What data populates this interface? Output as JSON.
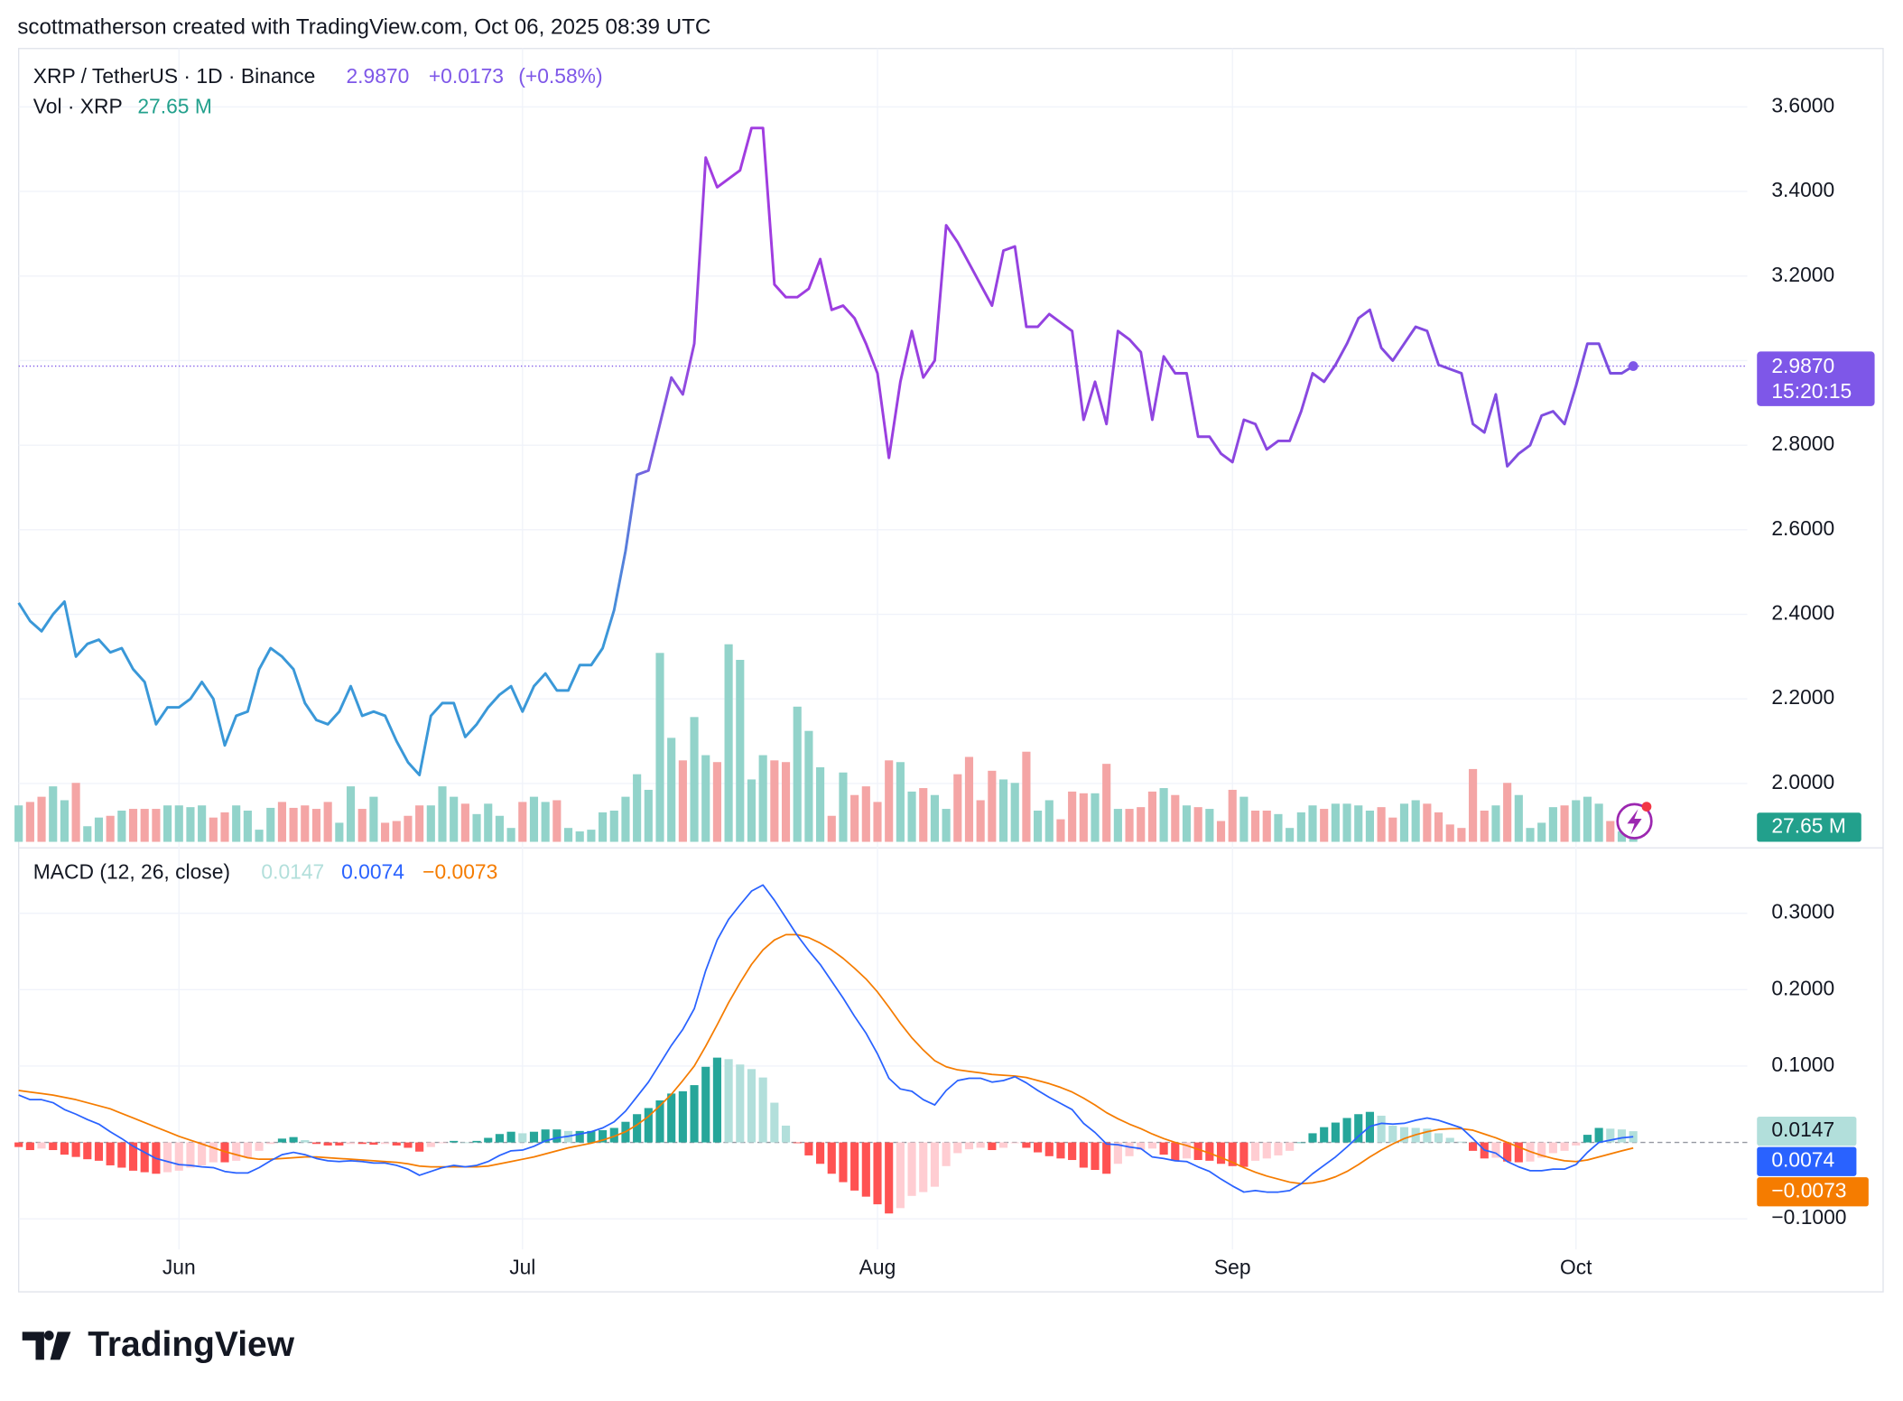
{
  "chart_data": {
    "type": "line",
    "header": "scottmatherson created with TradingView.com, Oct 06, 2025 08:39 UTC",
    "logo": "TradingView",
    "categories": [
      null,
      null,
      null,
      null,
      null,
      null,
      null,
      null,
      null,
      null,
      null,
      null,
      null,
      null,
      "Jun",
      null,
      null,
      null,
      null,
      null,
      null,
      null,
      null,
      null,
      null,
      null,
      null,
      null,
      null,
      null,
      null,
      null,
      null,
      null,
      null,
      null,
      null,
      null,
      null,
      null,
      null,
      null,
      null,
      null,
      "Jul",
      null,
      null,
      null,
      null,
      null,
      null,
      null,
      null,
      null,
      null,
      null,
      null,
      null,
      null,
      null,
      null,
      null,
      null,
      null,
      null,
      null,
      null,
      null,
      null,
      null,
      null,
      null,
      null,
      null,
      null,
      "Aug",
      null,
      null,
      null,
      null,
      null,
      null,
      null,
      null,
      null,
      null,
      null,
      null,
      null,
      null,
      null,
      null,
      null,
      null,
      null,
      null,
      null,
      null,
      null,
      null,
      null,
      null,
      null,
      null,
      null,
      null,
      "Sep",
      null,
      null,
      null,
      null,
      null,
      null,
      null,
      null,
      null,
      null,
      null,
      null,
      null,
      null,
      null,
      null,
      null,
      null,
      null,
      null,
      null,
      null,
      null,
      null,
      null,
      null,
      null,
      null,
      null,
      "Oct",
      null,
      null,
      null,
      null,
      null
    ],
    "price": {
      "name": "XRP / TetherUS · 1D · Binance",
      "values": [
        2.427,
        2.384,
        2.36,
        2.4,
        2.43,
        2.3,
        2.33,
        2.34,
        2.31,
        2.32,
        2.27,
        2.24,
        2.14,
        2.18,
        2.18,
        2.2,
        2.24,
        2.2,
        2.09,
        2.16,
        2.17,
        2.27,
        2.32,
        2.3,
        2.27,
        2.19,
        2.15,
        2.14,
        2.17,
        2.23,
        2.16,
        2.17,
        2.16,
        2.1,
        2.05,
        2.02,
        2.16,
        2.19,
        2.19,
        2.11,
        2.14,
        2.18,
        2.21,
        2.23,
        2.17,
        2.23,
        2.26,
        2.22,
        2.22,
        2.28,
        2.28,
        2.32,
        2.41,
        2.55,
        2.73,
        2.74,
        2.85,
        2.96,
        2.92,
        3.04,
        3.48,
        3.41,
        3.43,
        3.45,
        3.55,
        3.55,
        3.18,
        3.15,
        3.15,
        3.17,
        3.24,
        3.12,
        3.13,
        3.1,
        3.04,
        2.97,
        2.77,
        2.95,
        3.07,
        2.96,
        3.0,
        3.32,
        3.28,
        3.23,
        3.18,
        3.13,
        3.26,
        3.27,
        3.08,
        3.08,
        3.11,
        3.09,
        3.07,
        2.86,
        2.95,
        2.85,
        3.07,
        3.05,
        3.02,
        2.86,
        3.01,
        2.97,
        2.97,
        2.82,
        2.82,
        2.78,
        2.76,
        2.86,
        2.85,
        2.79,
        2.81,
        2.81,
        2.88,
        2.97,
        2.95,
        2.99,
        3.04,
        3.1,
        3.12,
        3.03,
        3.0,
        3.04,
        3.08,
        3.07,
        2.99,
        2.98,
        2.97,
        2.85,
        2.83,
        2.92,
        2.75,
        2.78,
        2.8,
        2.87,
        2.88,
        2.85,
        2.94,
        3.04,
        3.04,
        2.97,
        2.97,
        2.987
      ],
      "last_label": "2.9870",
      "change": 0.0173,
      "change_label": "+0.0173",
      "change_pct": 0.58,
      "change_pct_label": "(+0.58%)",
      "countdown": "15:20:15",
      "colors": [
        "#3a98d8",
        "#7a5fe0",
        "#a23be0",
        "#7b4fe0"
      ],
      "label_color": "#7e57e8",
      "ylim": [
        1.862,
        3.738
      ],
      "yticks": [
        {
          "value": 3.6,
          "label": "3.6000"
        },
        {
          "value": 3.4,
          "label": "3.4000"
        },
        {
          "value": 3.2,
          "label": "3.2000"
        },
        {
          "value": 3.0,
          "label": "3.0000"
        },
        {
          "value": 2.8,
          "label": "2.8000"
        },
        {
          "value": 2.6,
          "label": "2.6000"
        },
        {
          "value": 2.4,
          "label": "2.4000"
        },
        {
          "value": 2.2,
          "label": "2.2000"
        },
        {
          "value": 2.0,
          "label": "2.0000"
        }
      ]
    },
    "volume": {
      "name": "Vol · XRP",
      "values": [
        105,
        115,
        130,
        160,
        120,
        170,
        45,
        70,
        75,
        90,
        95,
        95,
        95,
        105,
        105,
        100,
        105,
        70,
        85,
        105,
        90,
        35,
        98,
        115,
        98,
        105,
        95,
        115,
        55,
        160,
        95,
        130,
        55,
        60,
        75,
        105,
        105,
        160,
        130,
        110,
        80,
        110,
        75,
        40,
        115,
        130,
        115,
        120,
        40,
        30,
        35,
        85,
        90,
        130,
        195,
        150,
        545,
        300,
        235,
        360,
        250,
        230,
        570,
        525,
        180,
        250,
        235,
        230,
        390,
        320,
        215,
        75,
        200,
        135,
        160,
        115,
        235,
        230,
        145,
        155,
        135,
        95,
        195,
        245,
        120,
        205,
        180,
        170,
        260,
        90,
        120,
        65,
        145,
        140,
        140,
        225,
        95,
        95,
        100,
        145,
        155,
        135,
        105,
        100,
        95,
        60,
        150,
        130,
        90,
        90,
        80,
        40,
        85,
        105,
        95,
        110,
        110,
        105,
        90,
        100,
        70,
        110,
        120,
        110,
        85,
        50,
        40,
        210,
        90,
        105,
        170,
        135,
        40,
        55,
        100,
        105,
        120,
        130,
        110,
        60,
        30,
        27.65
      ],
      "last_label": "27.65 M",
      "up_color": "#92d3ca",
      "down_color": "#f4a5a5",
      "label_color": "#22a08c",
      "ylim": [
        0,
        700
      ]
    },
    "macd": {
      "name": "MACD (12, 26, close)",
      "histogram": [
        -0.006,
        -0.01,
        -0.008,
        -0.01,
        -0.016,
        -0.019,
        -0.022,
        -0.024,
        -0.03,
        -0.033,
        -0.037,
        -0.039,
        -0.041,
        -0.039,
        -0.037,
        -0.033,
        -0.03,
        -0.026,
        -0.026,
        -0.024,
        -0.02,
        -0.011,
        -0.002,
        0.005,
        0.007,
        0.003,
        -0.002,
        -0.004,
        -0.004,
        -0.002,
        -0.002,
        -0.003,
        -0.002,
        -0.004,
        -0.007,
        -0.012,
        -0.006,
        -0.001,
        0.002,
        0,
        0.002,
        0.006,
        0.011,
        0.014,
        0.012,
        0.014,
        0.017,
        0.017,
        0.015,
        0.015,
        0.015,
        0.016,
        0.019,
        0.027,
        0.037,
        0.045,
        0.055,
        0.064,
        0.067,
        0.075,
        0.099,
        0.111,
        0.109,
        0.102,
        0.096,
        0.085,
        0.052,
        0.022,
        -0.001,
        -0.017,
        -0.028,
        -0.041,
        -0.052,
        -0.063,
        -0.071,
        -0.081,
        -0.093,
        -0.086,
        -0.07,
        -0.065,
        -0.058,
        -0.031,
        -0.014,
        -0.009,
        -0.007,
        -0.01,
        -0.007,
        -0.001,
        -0.007,
        -0.013,
        -0.018,
        -0.021,
        -0.023,
        -0.033,
        -0.036,
        -0.041,
        -0.028,
        -0.018,
        -0.01,
        -0.008,
        -0.016,
        -0.024,
        -0.021,
        -0.023,
        -0.024,
        -0.028,
        -0.031,
        -0.032,
        -0.024,
        -0.021,
        -0.017,
        -0.011,
        0,
        0.012,
        0.02,
        0.026,
        0.032,
        0.037,
        0.04,
        0.035,
        0.022,
        0.02,
        0.019,
        0.018,
        0.012,
        0.006,
        0.001,
        -0.011,
        -0.021,
        -0.02,
        -0.025,
        -0.026,
        -0.025,
        -0.02,
        -0.014,
        -0.011,
        -0.004,
        0.01,
        0.019,
        0.018,
        0.017,
        0.0147
      ],
      "macd": [
        0.062,
        0.056,
        0.056,
        0.052,
        0.043,
        0.037,
        0.03,
        0.024,
        0.014,
        0.005,
        -0.005,
        -0.013,
        -0.021,
        -0.025,
        -0.029,
        -0.03,
        -0.032,
        -0.033,
        -0.038,
        -0.04,
        -0.04,
        -0.033,
        -0.024,
        -0.016,
        -0.013,
        -0.016,
        -0.021,
        -0.024,
        -0.025,
        -0.024,
        -0.025,
        -0.027,
        -0.027,
        -0.03,
        -0.035,
        -0.043,
        -0.038,
        -0.033,
        -0.03,
        -0.032,
        -0.03,
        -0.025,
        -0.017,
        -0.011,
        -0.01,
        -0.005,
        0.002,
        0.006,
        0.008,
        0.011,
        0.014,
        0.019,
        0.027,
        0.041,
        0.06,
        0.079,
        0.103,
        0.127,
        0.148,
        0.175,
        0.225,
        0.265,
        0.292,
        0.311,
        0.329,
        0.337,
        0.317,
        0.294,
        0.271,
        0.251,
        0.233,
        0.211,
        0.189,
        0.165,
        0.143,
        0.116,
        0.084,
        0.07,
        0.067,
        0.056,
        0.049,
        0.068,
        0.081,
        0.084,
        0.084,
        0.079,
        0.081,
        0.086,
        0.078,
        0.068,
        0.059,
        0.051,
        0.043,
        0.025,
        0.013,
        -0.002,
        -0.003,
        -0.006,
        -0.008,
        -0.019,
        -0.021,
        -0.024,
        -0.025,
        -0.032,
        -0.038,
        -0.048,
        -0.057,
        -0.065,
        -0.063,
        -0.065,
        -0.065,
        -0.063,
        -0.054,
        -0.041,
        -0.03,
        -0.019,
        -0.006,
        0.008,
        0.021,
        0.025,
        0.024,
        0.025,
        0.029,
        0.032,
        0.029,
        0.024,
        0.019,
        0.005,
        -0.01,
        -0.014,
        -0.025,
        -0.032,
        -0.037,
        -0.037,
        -0.035,
        -0.035,
        -0.029,
        -0.013,
        0,
        0.003,
        0.006,
        0.0074
      ],
      "signal": [
        0.068,
        0.066,
        0.064,
        0.062,
        0.059,
        0.056,
        0.052,
        0.048,
        0.044,
        0.038,
        0.032,
        0.026,
        0.02,
        0.014,
        0.008,
        0.003,
        -0.002,
        -0.007,
        -0.012,
        -0.016,
        -0.02,
        -0.022,
        -0.022,
        -0.021,
        -0.02,
        -0.019,
        -0.019,
        -0.02,
        -0.021,
        -0.022,
        -0.023,
        -0.024,
        -0.025,
        -0.026,
        -0.028,
        -0.031,
        -0.032,
        -0.032,
        -0.032,
        -0.032,
        -0.032,
        -0.031,
        -0.028,
        -0.025,
        -0.022,
        -0.019,
        -0.015,
        -0.011,
        -0.007,
        -0.004,
        -0.001,
        0.003,
        0.008,
        0.014,
        0.023,
        0.034,
        0.048,
        0.063,
        0.081,
        0.1,
        0.126,
        0.154,
        0.183,
        0.209,
        0.233,
        0.252,
        0.265,
        0.272,
        0.272,
        0.268,
        0.261,
        0.252,
        0.241,
        0.228,
        0.214,
        0.197,
        0.177,
        0.156,
        0.137,
        0.121,
        0.107,
        0.099,
        0.095,
        0.093,
        0.091,
        0.089,
        0.088,
        0.087,
        0.085,
        0.081,
        0.077,
        0.072,
        0.066,
        0.058,
        0.049,
        0.039,
        0.031,
        0.024,
        0.018,
        0.011,
        0.005,
        0.0,
        -0.004,
        -0.009,
        -0.014,
        -0.02,
        -0.026,
        -0.033,
        -0.039,
        -0.044,
        -0.048,
        -0.052,
        -0.054,
        -0.053,
        -0.05,
        -0.045,
        -0.038,
        -0.029,
        -0.019,
        -0.01,
        -0.002,
        0.005,
        0.01,
        0.014,
        0.017,
        0.018,
        0.018,
        0.016,
        0.011,
        0.006,
        0.0,
        -0.006,
        -0.012,
        -0.017,
        -0.021,
        -0.024,
        -0.025,
        -0.023,
        -0.019,
        -0.015,
        -0.011,
        -0.0073
      ],
      "histogram_label": "0.0147",
      "macd_label": "0.0074",
      "signal_label": "−0.0073",
      "macd_color": "#2962ff",
      "signal_color": "#f57c00",
      "hist_colors": [
        "#26a69a",
        "#b2dfdb",
        "#ff5252",
        "#ffcdd2"
      ],
      "ylim": [
        -0.14,
        0.384
      ],
      "yticks": [
        {
          "value": 0.3,
          "label": "0.3000"
        },
        {
          "value": 0.2,
          "label": "0.2000"
        },
        {
          "value": 0.1,
          "label": "0.1000"
        },
        {
          "value": -0.1,
          "label": "−0.1000"
        }
      ]
    },
    "grid": true
  }
}
